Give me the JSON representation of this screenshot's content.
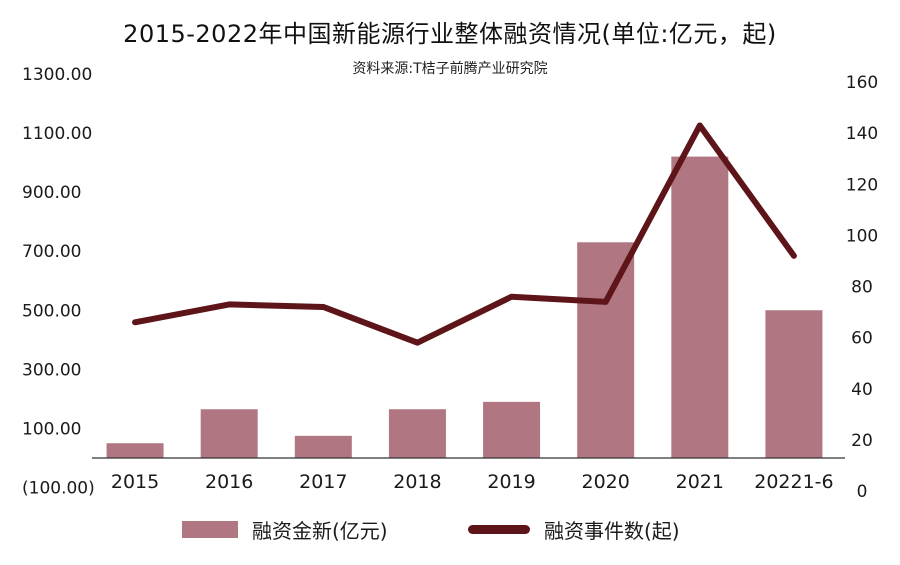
{
  "title": "2015-2022年中国新能源行业整体融资情况(单位:亿元，起)",
  "subtitle": "资料来源:T桔子前腾产业研究院",
  "colors": {
    "bar": "#b07782",
    "line": "#5e1519",
    "axis": "#333333"
  },
  "chart_data": {
    "type": "bar",
    "categories": [
      "2015",
      "2016",
      "2017",
      "2018",
      "2019",
      "2020",
      "2021",
      "20221-6"
    ],
    "series": [
      {
        "name": "融资金新(亿元)",
        "type": "bar",
        "axis": "left",
        "values": [
          50,
          165,
          75,
          165,
          190,
          730,
          1020,
          500
        ]
      },
      {
        "name": "融资事件数(起)",
        "type": "line",
        "axis": "right",
        "values": [
          66,
          73,
          72,
          58,
          76,
          74,
          143,
          92
        ]
      }
    ],
    "y_left": {
      "min": -100,
      "max": 1300,
      "ticks": [
        "(100.00)",
        "100.00",
        "300.00",
        "500.00",
        "700.00",
        "900.00",
        "1100.00",
        "1300.00"
      ],
      "tick_values": [
        -100,
        100,
        300,
        500,
        700,
        900,
        1100,
        1300
      ]
    },
    "y_right": {
      "min": 0,
      "max": 160,
      "ticks": [
        "0",
        "20",
        "40",
        "60",
        "80",
        "100",
        "120",
        "140",
        "160"
      ],
      "tick_values": [
        0,
        20,
        40,
        60,
        80,
        100,
        120,
        140,
        160
      ]
    },
    "grid": false,
    "legend_position": "bottom"
  }
}
